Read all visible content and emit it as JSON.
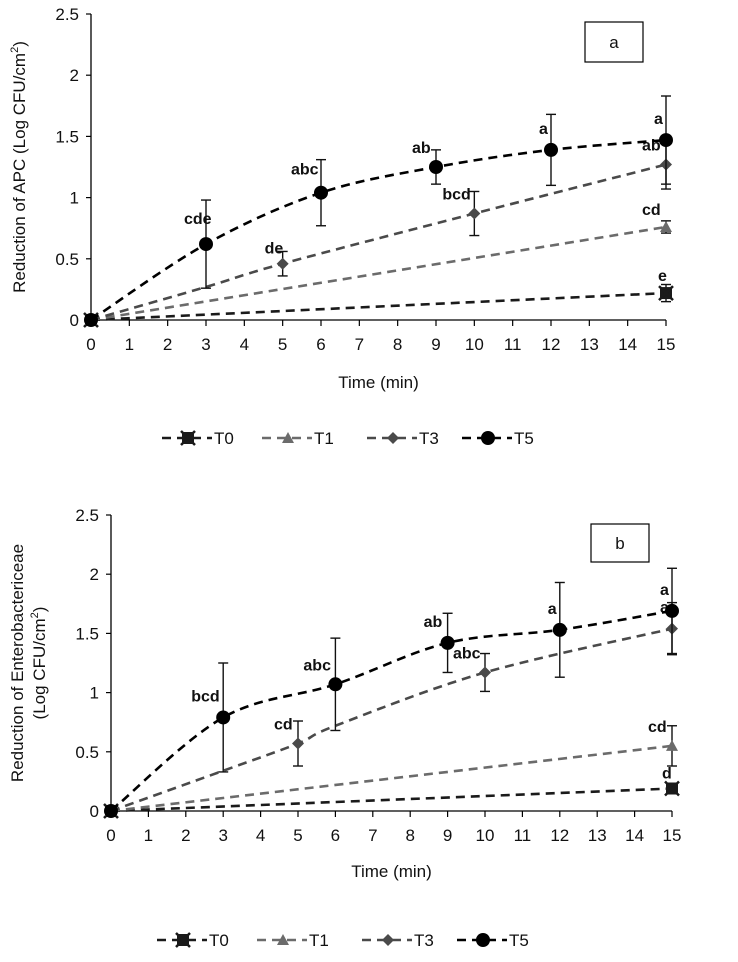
{
  "chart_data": [
    {
      "type": "line",
      "panel_label": "a",
      "title": "",
      "xlabel": "Time (min)",
      "ylabel": "Reduction of APC (Log CFU/cm²)",
      "ylabel_lines": [
        "Reduction of APC (Log CFU/cm",
        "2",
        ")"
      ],
      "xlim": [
        0,
        15
      ],
      "ylim": [
        0,
        2.5
      ],
      "x_ticks": [
        "0",
        "1",
        "2",
        "3",
        "4",
        "5",
        "6",
        "7",
        "8",
        "9",
        "10",
        "11",
        "12",
        "13",
        "14",
        "15"
      ],
      "y_ticks": [
        "0",
        "0.5",
        "1",
        "1.5",
        "2",
        "2.5"
      ],
      "grid": false,
      "legend_position": "bottom",
      "series": [
        {
          "name": "T0",
          "color": "#1a1a1a",
          "marker": "x-square",
          "x": [
            0,
            15
          ],
          "y": [
            0,
            0.22
          ],
          "err": [
            0,
            0.07
          ],
          "labels": [
            "",
            "e"
          ],
          "trend_x": [
            0,
            15
          ],
          "trend_y": [
            0,
            0.22
          ]
        },
        {
          "name": "T1",
          "color": "#6b6b6b",
          "marker": "triangle",
          "x": [
            0,
            15
          ],
          "y": [
            0,
            0.76
          ],
          "err": [
            0,
            0.05
          ],
          "labels": [
            "",
            "cd"
          ],
          "trend_x": [
            0,
            15
          ],
          "trend_y": [
            0,
            0.76
          ]
        },
        {
          "name": "T3",
          "color": "#4a4a4a",
          "marker": "diamond",
          "x": [
            0,
            5,
            10,
            15
          ],
          "y": [
            0,
            0.46,
            0.87,
            1.27
          ],
          "err": [
            0,
            0.1,
            0.18,
            0.2
          ],
          "labels": [
            "",
            "de",
            "bcd",
            "ab"
          ],
          "trend_x": [
            0,
            3,
            5,
            10,
            15
          ],
          "trend_y": [
            0,
            0.27,
            0.46,
            0.87,
            1.27
          ]
        },
        {
          "name": "T5",
          "color": "#000000",
          "marker": "circle",
          "x": [
            0,
            3,
            6,
            9,
            12,
            15
          ],
          "y": [
            0,
            0.62,
            1.04,
            1.25,
            1.39,
            1.47
          ],
          "err": [
            0,
            0.36,
            0.27,
            0.14,
            0.29,
            0.36
          ],
          "labels": [
            "",
            "cde",
            "abc",
            "ab",
            "a",
            "a"
          ],
          "trend_x": [
            0,
            3,
            6,
            9,
            12,
            15
          ],
          "trend_y": [
            0,
            0.62,
            1.04,
            1.25,
            1.39,
            1.47
          ]
        }
      ]
    },
    {
      "type": "line",
      "panel_label": "b",
      "title": "",
      "xlabel": "Time (min)",
      "ylabel": "Reduction of Enterobactericeae (Log CFU/cm²)",
      "ylabel_lines": [
        "Reduction of Enterobactericeae",
        "(Log CFU/cm",
        "2",
        ")"
      ],
      "xlim": [
        0,
        15
      ],
      "ylim": [
        0,
        2.5
      ],
      "x_ticks": [
        "0",
        "1",
        "2",
        "3",
        "4",
        "5",
        "6",
        "7",
        "8",
        "9",
        "10",
        "11",
        "12",
        "13",
        "14",
        "15"
      ],
      "y_ticks": [
        "0",
        "0.5",
        "1",
        "1.5",
        "2",
        "2.5"
      ],
      "grid": false,
      "legend_position": "bottom",
      "series": [
        {
          "name": "T0",
          "color": "#1a1a1a",
          "marker": "x-square",
          "x": [
            0,
            15
          ],
          "y": [
            0,
            0.19
          ],
          "err": [
            0,
            0.04
          ],
          "labels": [
            "",
            "d"
          ],
          "trend_x": [
            0,
            15
          ],
          "trend_y": [
            0,
            0.19
          ]
        },
        {
          "name": "T1",
          "color": "#6b6b6b",
          "marker": "triangle",
          "x": [
            0,
            15
          ],
          "y": [
            0,
            0.55
          ],
          "err": [
            0,
            0.17
          ],
          "labels": [
            "",
            "cd"
          ],
          "trend_x": [
            0,
            15
          ],
          "trend_y": [
            0,
            0.55
          ]
        },
        {
          "name": "T3",
          "color": "#4a4a4a",
          "marker": "diamond",
          "x": [
            0,
            5,
            10,
            15
          ],
          "y": [
            0,
            0.57,
            1.17,
            1.54
          ],
          "err": [
            0,
            0.19,
            0.16,
            0.22
          ],
          "labels": [
            "",
            "cd",
            "abc",
            "a"
          ],
          "trend_x": [
            0,
            3,
            5,
            6,
            10,
            15
          ],
          "trend_y": [
            0,
            0.34,
            0.57,
            0.72,
            1.17,
            1.54
          ]
        },
        {
          "name": "T5",
          "color": "#000000",
          "marker": "circle",
          "x": [
            0,
            3,
            6,
            9,
            12,
            15
          ],
          "y": [
            0,
            0.79,
            1.07,
            1.42,
            1.53,
            1.69
          ],
          "err": [
            0,
            0.46,
            0.39,
            0.25,
            0.4,
            0.36
          ],
          "labels": [
            "",
            "bcd",
            "abc",
            "ab",
            "a",
            "a"
          ],
          "trend_x": [
            0,
            3,
            6,
            9,
            12,
            15
          ],
          "trend_y": [
            0,
            0.79,
            1.07,
            1.42,
            1.53,
            1.69
          ]
        }
      ]
    }
  ]
}
